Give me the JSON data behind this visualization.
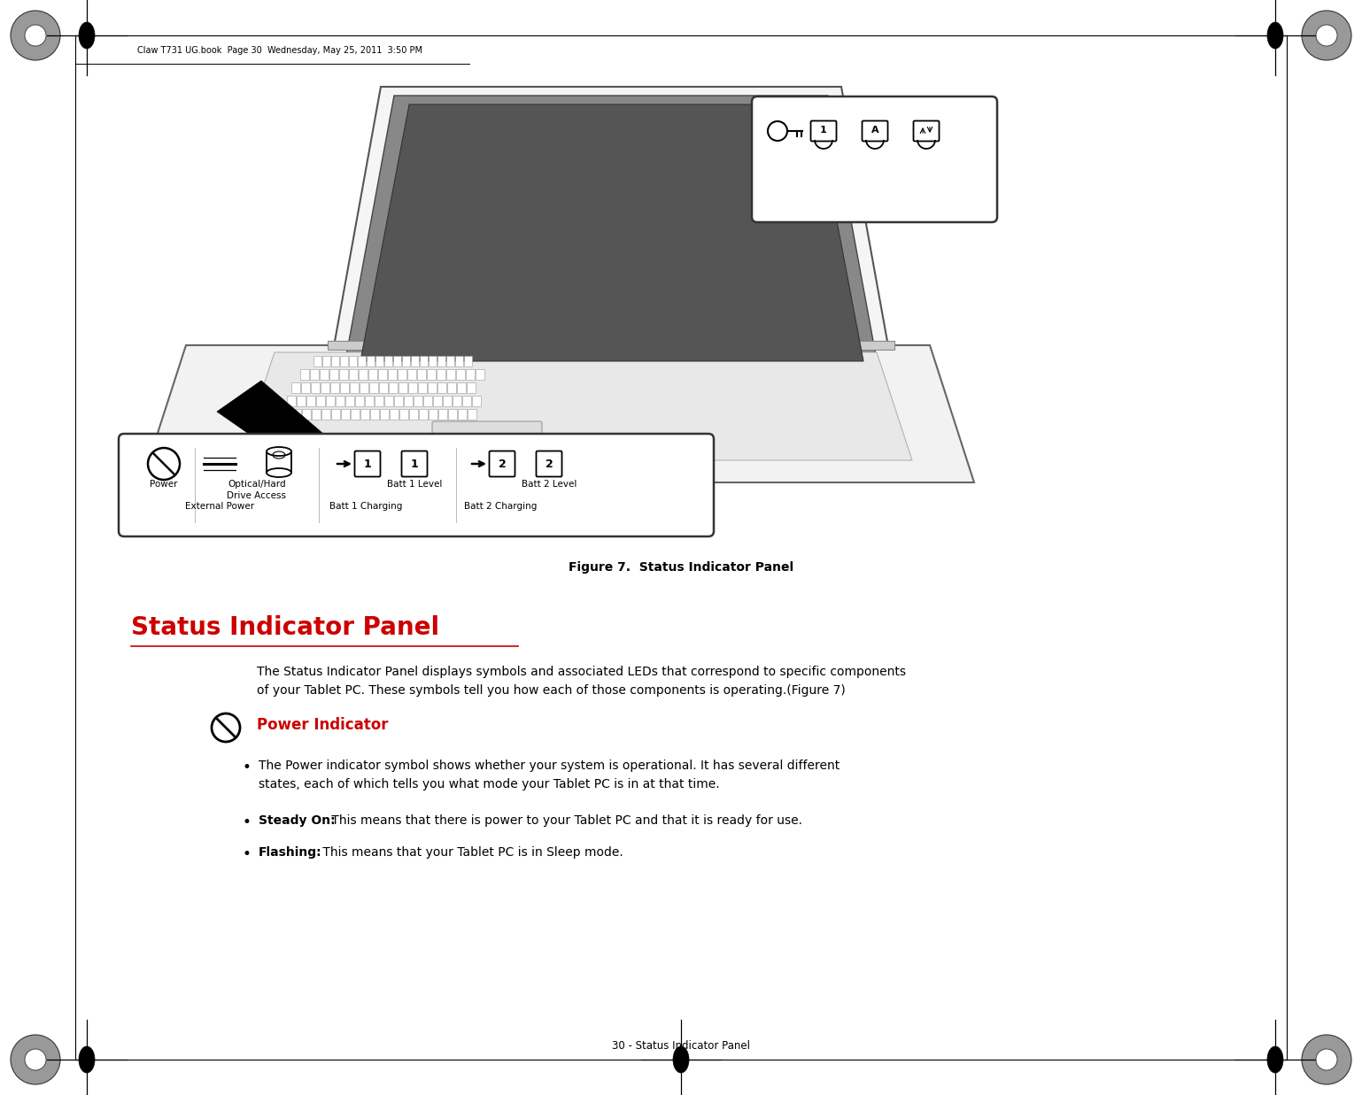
{
  "page_bg": "#ffffff",
  "page_width": 15.38,
  "page_height": 12.37,
  "dpi": 100,
  "header_text": "Claw T731 UG.book  Page 30  Wednesday, May 25, 2011  3:50 PM",
  "figure_caption": "Figure 7.  Status Indicator Panel",
  "section_title": "Status Indicator Panel",
  "section_title_color": "#cc0000",
  "body_text_1": "The Status Indicator Panel displays symbols and associated LEDs that correspond to specific components\nof your Tablet PC. These symbols tell you how each of those components is operating.(Figure 7)",
  "power_indicator_label": "Power Indicator",
  "power_indicator_color": "#cc0000",
  "bullet_1": "The Power indicator symbol shows whether your system is operational. It has several different\nstates, each of which tells you what mode your Tablet PC is in at that time.",
  "bullet_2_bold": "Steady On:",
  "bullet_2_rest": " This means that there is power to your Tablet PC and that it is ready for use.",
  "bullet_3_bold": "Flashing:",
  "bullet_3_rest": " This means that your Tablet PC is in Sleep mode.",
  "footer_text": "30 - Status Indicator Panel"
}
